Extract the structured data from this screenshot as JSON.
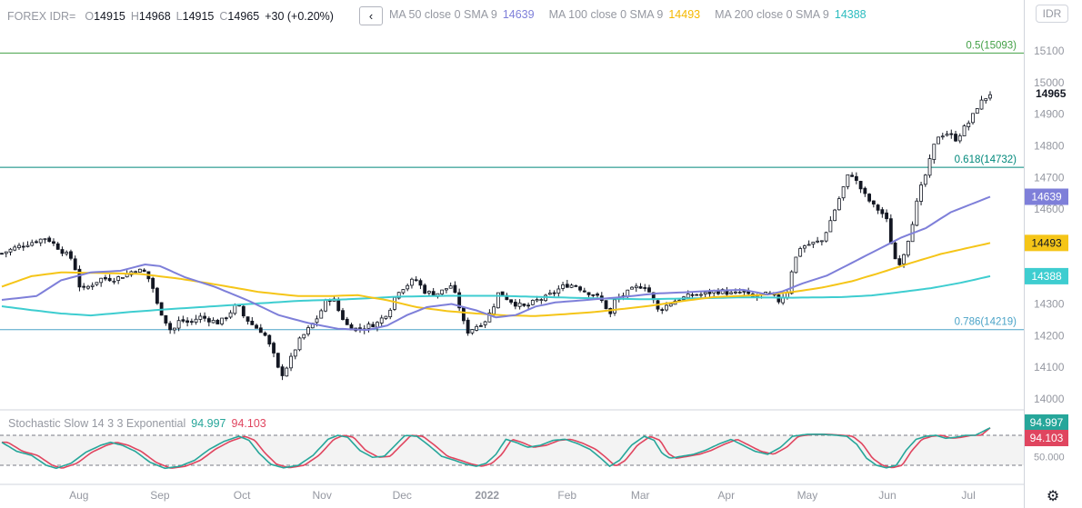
{
  "header": {
    "symbol": "FOREX IDR=",
    "o_label": "O",
    "o_value": "14915",
    "h_label": "H",
    "h_value": "14968",
    "l_label": "L",
    "l_value": "14915",
    "c_label": "C",
    "c_value": "14965",
    "change": "+30 (+0.20%)",
    "nav_label": "‹",
    "currency": "IDR"
  },
  "indicators": [
    {
      "label": "MA 50 close 0 SMA 9",
      "value": "14639",
      "color": "#7e7fd9"
    },
    {
      "label": "MA 100 close 0 SMA 9",
      "value": "14493",
      "color": "#f5c518"
    },
    {
      "label": "MA 200 close 0 SMA 9",
      "value": "14388",
      "color": "#3ecdd0"
    }
  ],
  "stochastic": {
    "label": "Stochastic Slow 14 3 3 Exponential",
    "k_value": "94.997",
    "k_color": "#26a69a",
    "d_value": "94.103",
    "d_color": "#e0455f",
    "axis_label": "50.000",
    "upper": 80,
    "lower": 20
  },
  "chart_data": {
    "type": "candlestick",
    "price_ticks": [
      "15100",
      "15000",
      "14900",
      "14800",
      "14700",
      "14600",
      "14500",
      "14400",
      "14300",
      "14200",
      "14100",
      "14000"
    ],
    "price_tick_values": [
      15100,
      15000,
      14900,
      14800,
      14700,
      14600,
      14500,
      14400,
      14300,
      14200,
      14100,
      14000
    ],
    "ylim": [
      13995,
      15105
    ],
    "last_price_label": "14965",
    "ma_labels": [
      {
        "text": "14639",
        "value": 14639,
        "color": "#7e7fd9"
      },
      {
        "text": "14493",
        "value": 14493,
        "color": "#f5c518"
      },
      {
        "text": "14388",
        "value": 14388,
        "color": "#3ecdd0"
      }
    ],
    "fib_levels": [
      {
        "label": "0.5(15093)",
        "value": 15093,
        "color": "#43a047"
      },
      {
        "label": "0.618(14732)",
        "value": 14732,
        "color": "#00897b"
      },
      {
        "label": "0.786(14219)",
        "value": 14219,
        "color": "#4ba3c7"
      }
    ],
    "x_labels": [
      {
        "text": "Aug",
        "t": 0.078
      },
      {
        "text": "Sep",
        "t": 0.16
      },
      {
        "text": "Oct",
        "t": 0.243
      },
      {
        "text": "Nov",
        "t": 0.324
      },
      {
        "text": "Dec",
        "t": 0.405
      },
      {
        "text": "2022",
        "t": 0.491
      },
      {
        "text": "Feb",
        "t": 0.572
      },
      {
        "text": "Mar",
        "t": 0.646
      },
      {
        "text": "Apr",
        "t": 0.733
      },
      {
        "text": "May",
        "t": 0.815
      },
      {
        "text": "Jun",
        "t": 0.896
      },
      {
        "text": "Jul",
        "t": 0.978
      }
    ],
    "close_anchors": [
      [
        0.0,
        14460
      ],
      [
        0.015,
        14480
      ],
      [
        0.03,
        14495
      ],
      [
        0.045,
        14510
      ],
      [
        0.06,
        14470
      ],
      [
        0.072,
        14440
      ],
      [
        0.08,
        14340
      ],
      [
        0.09,
        14360
      ],
      [
        0.1,
        14380
      ],
      [
        0.115,
        14380
      ],
      [
        0.127,
        14395
      ],
      [
        0.135,
        14410
      ],
      [
        0.145,
        14400
      ],
      [
        0.152,
        14360
      ],
      [
        0.157,
        14300
      ],
      [
        0.165,
        14250
      ],
      [
        0.172,
        14210
      ],
      [
        0.18,
        14250
      ],
      [
        0.19,
        14240
      ],
      [
        0.2,
        14260
      ],
      [
        0.21,
        14250
      ],
      [
        0.22,
        14240
      ],
      [
        0.23,
        14270
      ],
      [
        0.238,
        14300
      ],
      [
        0.245,
        14260
      ],
      [
        0.255,
        14230
      ],
      [
        0.265,
        14210
      ],
      [
        0.275,
        14140
      ],
      [
        0.282,
        14070
      ],
      [
        0.29,
        14110
      ],
      [
        0.3,
        14180
      ],
      [
        0.31,
        14220
      ],
      [
        0.32,
        14260
      ],
      [
        0.328,
        14310
      ],
      [
        0.335,
        14320
      ],
      [
        0.342,
        14270
      ],
      [
        0.35,
        14230
      ],
      [
        0.36,
        14220
      ],
      [
        0.37,
        14230
      ],
      [
        0.38,
        14240
      ],
      [
        0.392,
        14280
      ],
      [
        0.4,
        14340
      ],
      [
        0.41,
        14360
      ],
      [
        0.418,
        14380
      ],
      [
        0.428,
        14340
      ],
      [
        0.438,
        14330
      ],
      [
        0.445,
        14340
      ],
      [
        0.455,
        14360
      ],
      [
        0.463,
        14290
      ],
      [
        0.47,
        14210
      ],
      [
        0.48,
        14230
      ],
      [
        0.49,
        14250
      ],
      [
        0.497,
        14290
      ],
      [
        0.503,
        14340
      ],
      [
        0.51,
        14320
      ],
      [
        0.52,
        14300
      ],
      [
        0.53,
        14290
      ],
      [
        0.54,
        14310
      ],
      [
        0.55,
        14320
      ],
      [
        0.56,
        14340
      ],
      [
        0.57,
        14360
      ],
      [
        0.58,
        14360
      ],
      [
        0.59,
        14340
      ],
      [
        0.6,
        14330
      ],
      [
        0.61,
        14300
      ],
      [
        0.615,
        14260
      ],
      [
        0.62,
        14310
      ],
      [
        0.63,
        14330
      ],
      [
        0.64,
        14350
      ],
      [
        0.65,
        14360
      ],
      [
        0.657,
        14330
      ],
      [
        0.663,
        14280
      ],
      [
        0.67,
        14290
      ],
      [
        0.68,
        14310
      ],
      [
        0.69,
        14320
      ],
      [
        0.7,
        14330
      ],
      [
        0.71,
        14330
      ],
      [
        0.72,
        14340
      ],
      [
        0.73,
        14340
      ],
      [
        0.74,
        14330
      ],
      [
        0.75,
        14340
      ],
      [
        0.758,
        14320
      ],
      [
        0.768,
        14330
      ],
      [
        0.778,
        14330
      ],
      [
        0.786,
        14310
      ],
      [
        0.795,
        14340
      ],
      [
        0.8,
        14420
      ],
      [
        0.808,
        14480
      ],
      [
        0.818,
        14490
      ],
      [
        0.83,
        14500
      ],
      [
        0.838,
        14560
      ],
      [
        0.848,
        14640
      ],
      [
        0.858,
        14720
      ],
      [
        0.866,
        14680
      ],
      [
        0.874,
        14640
      ],
      [
        0.882,
        14610
      ],
      [
        0.89,
        14590
      ],
      [
        0.896,
        14560
      ],
      [
        0.902,
        14450
      ],
      [
        0.908,
        14430
      ],
      [
        0.914,
        14470
      ],
      [
        0.92,
        14540
      ],
      [
        0.928,
        14650
      ],
      [
        0.936,
        14720
      ],
      [
        0.946,
        14830
      ],
      [
        0.956,
        14840
      ],
      [
        0.966,
        14820
      ],
      [
        0.972,
        14850
      ],
      [
        0.98,
        14880
      ],
      [
        0.988,
        14930
      ],
      [
        1.0,
        14965
      ]
    ],
    "ma50_anchors": [
      [
        0.0,
        14313
      ],
      [
        0.035,
        14325
      ],
      [
        0.06,
        14375
      ],
      [
        0.09,
        14400
      ],
      [
        0.12,
        14405
      ],
      [
        0.145,
        14425
      ],
      [
        0.16,
        14420
      ],
      [
        0.185,
        14385
      ],
      [
        0.215,
        14355
      ],
      [
        0.25,
        14310
      ],
      [
        0.28,
        14265
      ],
      [
        0.31,
        14240
      ],
      [
        0.34,
        14222
      ],
      [
        0.37,
        14218
      ],
      [
        0.39,
        14232
      ],
      [
        0.41,
        14265
      ],
      [
        0.43,
        14290
      ],
      [
        0.455,
        14300
      ],
      [
        0.48,
        14280
      ],
      [
        0.5,
        14258
      ],
      [
        0.52,
        14265
      ],
      [
        0.54,
        14292
      ],
      [
        0.56,
        14305
      ],
      [
        0.58,
        14310
      ],
      [
        0.6,
        14315
      ],
      [
        0.62,
        14320
      ],
      [
        0.64,
        14326
      ],
      [
        0.66,
        14333
      ],
      [
        0.69,
        14337
      ],
      [
        0.72,
        14342
      ],
      [
        0.75,
        14345
      ],
      [
        0.775,
        14330
      ],
      [
        0.79,
        14340
      ],
      [
        0.81,
        14365
      ],
      [
        0.835,
        14390
      ],
      [
        0.86,
        14430
      ],
      [
        0.885,
        14470
      ],
      [
        0.91,
        14510
      ],
      [
        0.935,
        14540
      ],
      [
        0.96,
        14590
      ],
      [
        1.0,
        14639
      ]
    ],
    "ma100_anchors": [
      [
        0.0,
        14355
      ],
      [
        0.03,
        14388
      ],
      [
        0.06,
        14400
      ],
      [
        0.1,
        14398
      ],
      [
        0.14,
        14395
      ],
      [
        0.18,
        14380
      ],
      [
        0.22,
        14360
      ],
      [
        0.26,
        14338
      ],
      [
        0.3,
        14325
      ],
      [
        0.33,
        14325
      ],
      [
        0.36,
        14328
      ],
      [
        0.39,
        14312
      ],
      [
        0.42,
        14290
      ],
      [
        0.45,
        14278
      ],
      [
        0.48,
        14270
      ],
      [
        0.51,
        14264
      ],
      [
        0.54,
        14262
      ],
      [
        0.57,
        14268
      ],
      [
        0.6,
        14275
      ],
      [
        0.63,
        14285
      ],
      [
        0.66,
        14296
      ],
      [
        0.69,
        14310
      ],
      [
        0.72,
        14322
      ],
      [
        0.75,
        14326
      ],
      [
        0.775,
        14330
      ],
      [
        0.8,
        14338
      ],
      [
        0.83,
        14352
      ],
      [
        0.86,
        14372
      ],
      [
        0.89,
        14400
      ],
      [
        0.92,
        14430
      ],
      [
        0.95,
        14458
      ],
      [
        1.0,
        14493
      ]
    ],
    "ma200_anchors": [
      [
        0.0,
        14293
      ],
      [
        0.03,
        14281
      ],
      [
        0.06,
        14270
      ],
      [
        0.09,
        14264
      ],
      [
        0.13,
        14275
      ],
      [
        0.17,
        14284
      ],
      [
        0.21,
        14292
      ],
      [
        0.25,
        14300
      ],
      [
        0.3,
        14310
      ],
      [
        0.35,
        14315
      ],
      [
        0.4,
        14323
      ],
      [
        0.45,
        14326
      ],
      [
        0.5,
        14326
      ],
      [
        0.55,
        14322
      ],
      [
        0.6,
        14318
      ],
      [
        0.65,
        14315
      ],
      [
        0.7,
        14318
      ],
      [
        0.75,
        14321
      ],
      [
        0.8,
        14320
      ],
      [
        0.85,
        14322
      ],
      [
        0.88,
        14327
      ],
      [
        0.91,
        14338
      ],
      [
        0.94,
        14350
      ],
      [
        0.97,
        14367
      ],
      [
        1.0,
        14388
      ]
    ],
    "stoch_k_anchors": [
      [
        0.0,
        66
      ],
      [
        0.015,
        48
      ],
      [
        0.03,
        40
      ],
      [
        0.045,
        20
      ],
      [
        0.055,
        14
      ],
      [
        0.07,
        24
      ],
      [
        0.085,
        46
      ],
      [
        0.1,
        60
      ],
      [
        0.11,
        66
      ],
      [
        0.122,
        60
      ],
      [
        0.135,
        48
      ],
      [
        0.15,
        26
      ],
      [
        0.165,
        14
      ],
      [
        0.18,
        18
      ],
      [
        0.195,
        30
      ],
      [
        0.21,
        52
      ],
      [
        0.225,
        68
      ],
      [
        0.24,
        78
      ],
      [
        0.25,
        70
      ],
      [
        0.26,
        45
      ],
      [
        0.272,
        22
      ],
      [
        0.285,
        15
      ],
      [
        0.3,
        20
      ],
      [
        0.315,
        40
      ],
      [
        0.33,
        72
      ],
      [
        0.34,
        80
      ],
      [
        0.35,
        76
      ],
      [
        0.362,
        50
      ],
      [
        0.375,
        36
      ],
      [
        0.387,
        38
      ],
      [
        0.398,
        60
      ],
      [
        0.408,
        80
      ],
      [
        0.42,
        78
      ],
      [
        0.432,
        60
      ],
      [
        0.445,
        38
      ],
      [
        0.458,
        30
      ],
      [
        0.47,
        22
      ],
      [
        0.48,
        18
      ],
      [
        0.49,
        24
      ],
      [
        0.5,
        42
      ],
      [
        0.51,
        72
      ],
      [
        0.52,
        66
      ],
      [
        0.532,
        56
      ],
      [
        0.545,
        60
      ],
      [
        0.558,
        70
      ],
      [
        0.57,
        72
      ],
      [
        0.582,
        64
      ],
      [
        0.595,
        52
      ],
      [
        0.605,
        36
      ],
      [
        0.615,
        18
      ],
      [
        0.625,
        30
      ],
      [
        0.637,
        60
      ],
      [
        0.65,
        78
      ],
      [
        0.66,
        70
      ],
      [
        0.668,
        44
      ],
      [
        0.676,
        34
      ],
      [
        0.688,
        38
      ],
      [
        0.7,
        42
      ],
      [
        0.712,
        50
      ],
      [
        0.725,
        62
      ],
      [
        0.738,
        72
      ],
      [
        0.75,
        60
      ],
      [
        0.762,
        48
      ],
      [
        0.775,
        42
      ],
      [
        0.788,
        56
      ],
      [
        0.8,
        78
      ],
      [
        0.815,
        82
      ],
      [
        0.83,
        82
      ],
      [
        0.845,
        80
      ],
      [
        0.855,
        78
      ],
      [
        0.865,
        62
      ],
      [
        0.875,
        34
      ],
      [
        0.885,
        20
      ],
      [
        0.895,
        15
      ],
      [
        0.905,
        20
      ],
      [
        0.915,
        50
      ],
      [
        0.925,
        72
      ],
      [
        0.935,
        78
      ],
      [
        0.945,
        80
      ],
      [
        0.955,
        74
      ],
      [
        0.965,
        76
      ],
      [
        0.975,
        80
      ],
      [
        0.985,
        80
      ],
      [
        1.0,
        95
      ]
    ]
  },
  "footer": {
    "gear_icon": "gear-icon"
  }
}
